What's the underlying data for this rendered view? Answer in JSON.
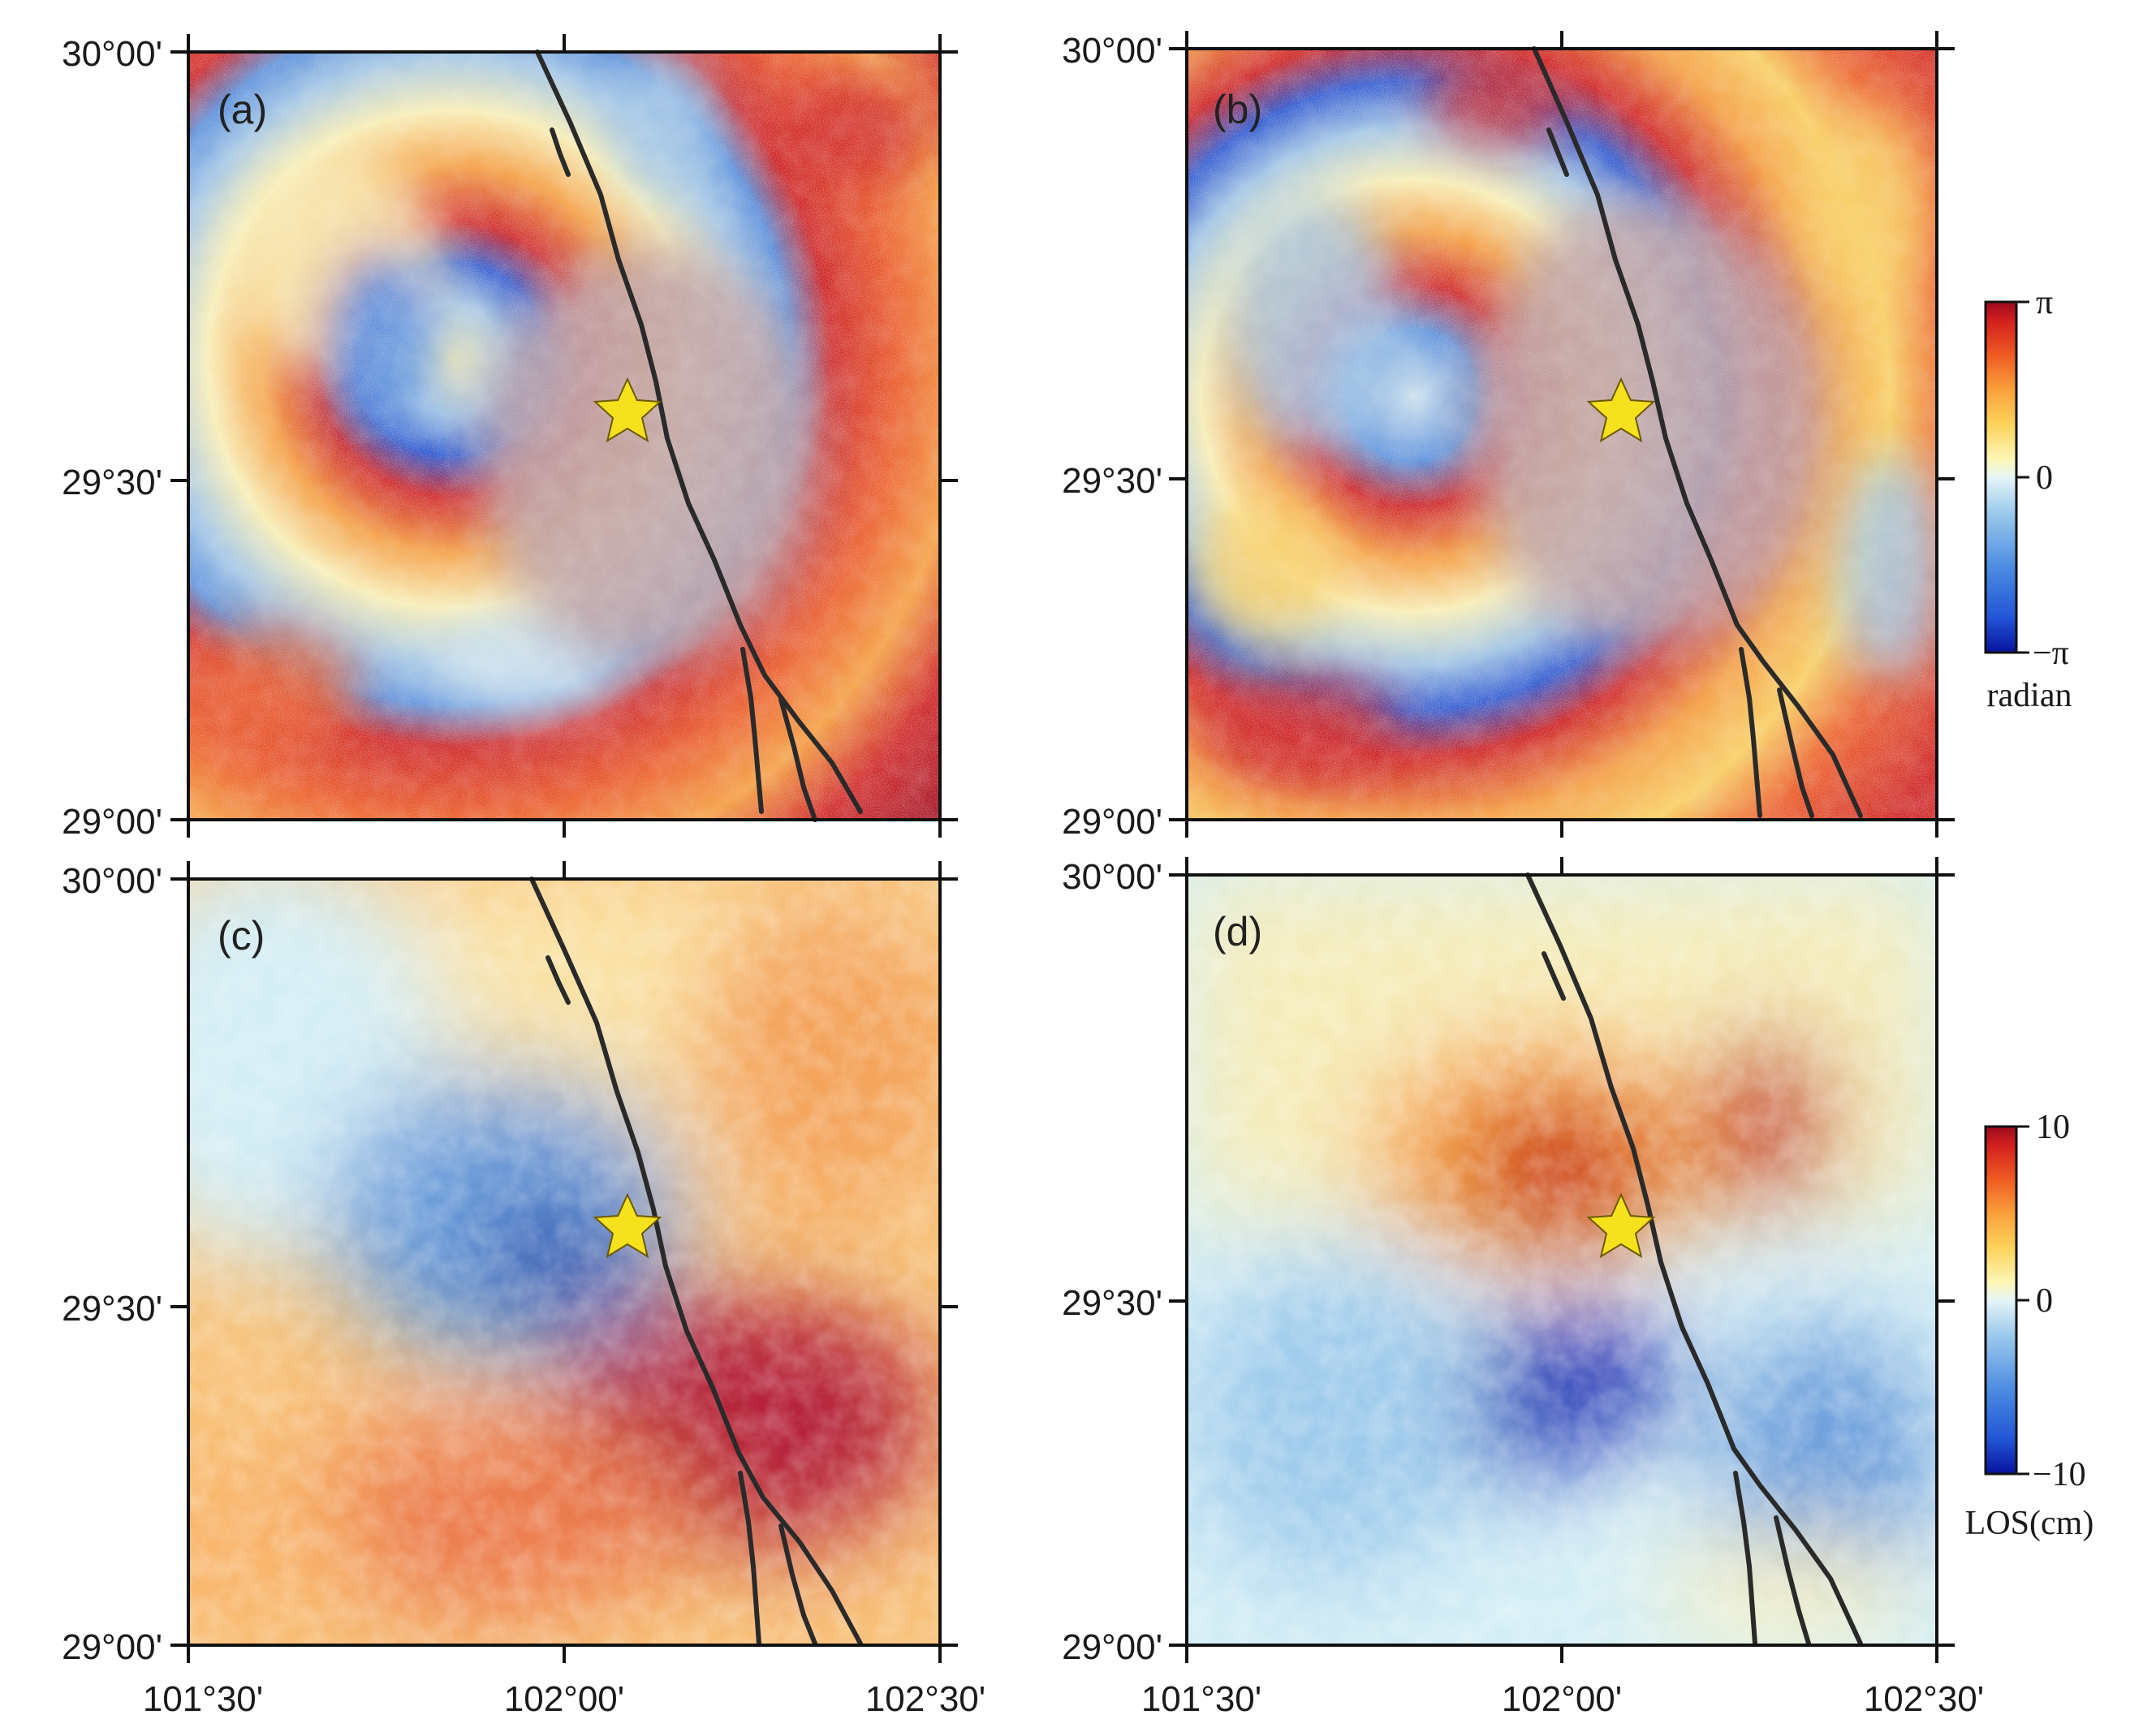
{
  "figure": {
    "lat_ticks": [
      "30°00'",
      "29°30'",
      "29°00'"
    ],
    "lon_ticks": [
      "101°30'",
      "102°00'",
      "102°30'"
    ],
    "panels": [
      {
        "label": "(a)",
        "kind": "wrapped"
      },
      {
        "label": "(b)",
        "kind": "wrapped"
      },
      {
        "label": "(c)",
        "kind": "los"
      },
      {
        "label": "(d)",
        "kind": "los"
      }
    ],
    "colorbar_phase": {
      "max": "π",
      "mid": "0",
      "min": "−π",
      "unit": "radian"
    },
    "colorbar_los": {
      "max": "10",
      "mid": "0",
      "min": "−10",
      "unit": "LOS(cm)"
    },
    "colors": {
      "scale": [
        "#08129e",
        "#2255d6",
        "#4f8fe2",
        "#9dcaec",
        "#d4eef6",
        "#fdf7b8",
        "#fdd35a",
        "#f9a03a",
        "#ef5a22",
        "#d01e1e",
        "#9b0a1e"
      ],
      "fault": "#2a2a2a",
      "star_fill": "#f6e11d",
      "star_stroke": "#6b5a00"
    }
  }
}
